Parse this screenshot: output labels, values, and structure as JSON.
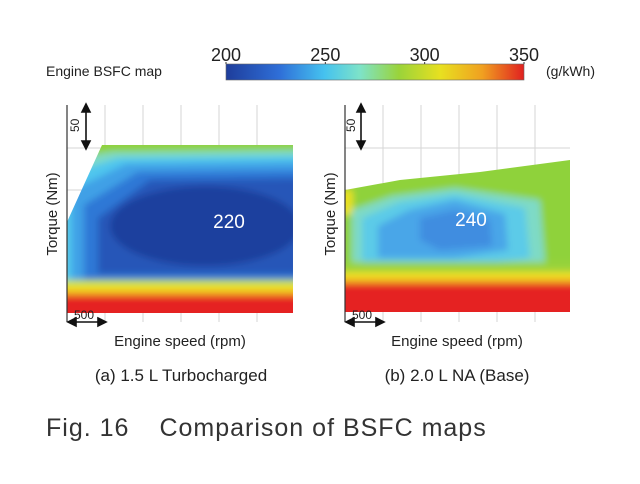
{
  "chart_data": {
    "type": "heatmap",
    "colorbar": {
      "label": "Engine BSFC map",
      "unit": "(g/kWh)",
      "ticks": [
        "200",
        "250",
        "300",
        "350"
      ],
      "range": [
        200,
        350
      ],
      "colors": [
        "#1e3d9b",
        "#2f7be0",
        "#45c2ef",
        "#7ee3c8",
        "#9ad33a",
        "#f0e020",
        "#f0a020",
        "#e02020"
      ]
    },
    "panels": [
      {
        "subtitle": "(a) 1.5 L Turbocharged",
        "xlabel": "Engine speed (rpm)",
        "ylabel": "Torque (Nm)",
        "x_scale": "500",
        "y_scale": "50",
        "min_bsfc_label": "220",
        "min_bsfc": 220,
        "max_bsfc": 350
      },
      {
        "subtitle": "(b) 2.0 L NA (Base)",
        "xlabel": "Engine speed (rpm)",
        "ylabel": "Torque (Nm)",
        "x_scale": "500",
        "y_scale": "50",
        "min_bsfc_label": "240",
        "min_bsfc": 240,
        "max_bsfc": 350
      }
    ]
  },
  "caption": {
    "fig_label": "Fig. 16",
    "title": "Comparison of BSFC maps"
  }
}
